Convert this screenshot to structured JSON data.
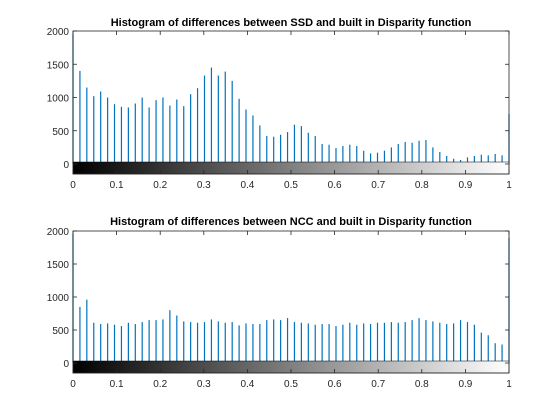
{
  "chart_data": [
    {
      "type": "bar",
      "title": "Histogram of differences between SSD and built in Disparity function",
      "xlabel": "",
      "ylabel": "",
      "xlim": [
        0,
        1
      ],
      "ylim": [
        -200,
        2000
      ],
      "yticks": [
        0,
        500,
        1000,
        1500,
        2000
      ],
      "xticks": [
        0,
        0.1,
        0.2,
        0.3,
        0.4,
        0.5,
        0.6,
        0.7,
        0.8,
        0.9,
        1
      ],
      "ytick_labels": [
        "0",
        "500",
        "1000",
        "1500",
        "2000"
      ],
      "xtick_labels": [
        "0",
        "0.1",
        "0.2",
        "0.3",
        "0.4",
        "0.5",
        "0.6",
        "0.7",
        "0.8",
        "0.9",
        "1"
      ],
      "colorbar": "grayscale",
      "bar_color": "#0072bd",
      "grid": false,
      "x": [
        0,
        0.0159,
        0.0317,
        0.0476,
        0.0635,
        0.0794,
        0.0952,
        0.1111,
        0.127,
        0.1429,
        0.1587,
        0.1746,
        0.1905,
        0.2063,
        0.2222,
        0.2381,
        0.254,
        0.2698,
        0.2857,
        0.3016,
        0.3175,
        0.3333,
        0.3492,
        0.3651,
        0.381,
        0.3968,
        0.4127,
        0.4286,
        0.4444,
        0.4603,
        0.4762,
        0.4921,
        0.5079,
        0.5238,
        0.5397,
        0.5556,
        0.5714,
        0.5873,
        0.6032,
        0.619,
        0.6349,
        0.6508,
        0.6667,
        0.6825,
        0.6984,
        0.7143,
        0.7302,
        0.746,
        0.7619,
        0.7778,
        0.7937,
        0.8095,
        0.8254,
        0.8413,
        0.8571,
        0.873,
        0.8889,
        0.9048,
        0.9206,
        0.9365,
        0.9524,
        0.9683,
        0.9841,
        1
      ],
      "values": [
        1950,
        1400,
        1150,
        1020,
        1090,
        1000,
        900,
        860,
        850,
        910,
        1000,
        850,
        960,
        1000,
        880,
        970,
        870,
        1050,
        1140,
        1330,
        1450,
        1330,
        1390,
        1250,
        980,
        820,
        730,
        580,
        420,
        410,
        440,
        480,
        590,
        570,
        470,
        420,
        300,
        290,
        240,
        270,
        290,
        270,
        200,
        160,
        170,
        200,
        250,
        300,
        330,
        320,
        350,
        360,
        250,
        180,
        120,
        80,
        60,
        100,
        120,
        140,
        130,
        150,
        130,
        750
      ]
    },
    {
      "type": "bar",
      "title": "Histogram of differences between NCC and built in Disparity function",
      "xlabel": "",
      "ylabel": "",
      "xlim": [
        0,
        1
      ],
      "ylim": [
        -200,
        2000
      ],
      "yticks": [
        0,
        500,
        1000,
        1500,
        2000
      ],
      "xticks": [
        0,
        0.1,
        0.2,
        0.3,
        0.4,
        0.5,
        0.6,
        0.7,
        0.8,
        0.9,
        1
      ],
      "ytick_labels": [
        "0",
        "500",
        "1000",
        "1500",
        "2000"
      ],
      "xtick_labels": [
        "0",
        "0.1",
        "0.2",
        "0.3",
        "0.4",
        "0.5",
        "0.6",
        "0.7",
        "0.8",
        "0.9",
        "1"
      ],
      "colorbar": "grayscale",
      "bar_color": "#0072bd",
      "grid": false,
      "x": [
        0,
        0.0159,
        0.0317,
        0.0476,
        0.0635,
        0.0794,
        0.0952,
        0.1111,
        0.127,
        0.1429,
        0.1587,
        0.1746,
        0.1905,
        0.2063,
        0.2222,
        0.2381,
        0.254,
        0.2698,
        0.2857,
        0.3016,
        0.3175,
        0.3333,
        0.3492,
        0.3651,
        0.381,
        0.3968,
        0.4127,
        0.4286,
        0.4444,
        0.4603,
        0.4762,
        0.4921,
        0.5079,
        0.5238,
        0.5397,
        0.5556,
        0.5714,
        0.5873,
        0.6032,
        0.619,
        0.6349,
        0.6508,
        0.6667,
        0.6825,
        0.6984,
        0.7143,
        0.7302,
        0.746,
        0.7619,
        0.7778,
        0.7937,
        0.8095,
        0.8254,
        0.8413,
        0.8571,
        0.873,
        0.8889,
        0.9048,
        0.9206,
        0.9365,
        0.9524,
        0.9683,
        0.9841,
        1
      ],
      "values": [
        1950,
        850,
        960,
        610,
        590,
        600,
        580,
        560,
        610,
        590,
        620,
        650,
        650,
        660,
        800,
        720,
        630,
        620,
        610,
        620,
        660,
        630,
        610,
        620,
        570,
        600,
        590,
        590,
        650,
        660,
        650,
        680,
        620,
        610,
        600,
        580,
        590,
        590,
        560,
        580,
        610,
        580,
        600,
        590,
        610,
        610,
        620,
        610,
        620,
        650,
        680,
        650,
        630,
        610,
        590,
        600,
        650,
        620,
        580,
        460,
        420,
        300,
        280,
        1900
      ]
    }
  ]
}
